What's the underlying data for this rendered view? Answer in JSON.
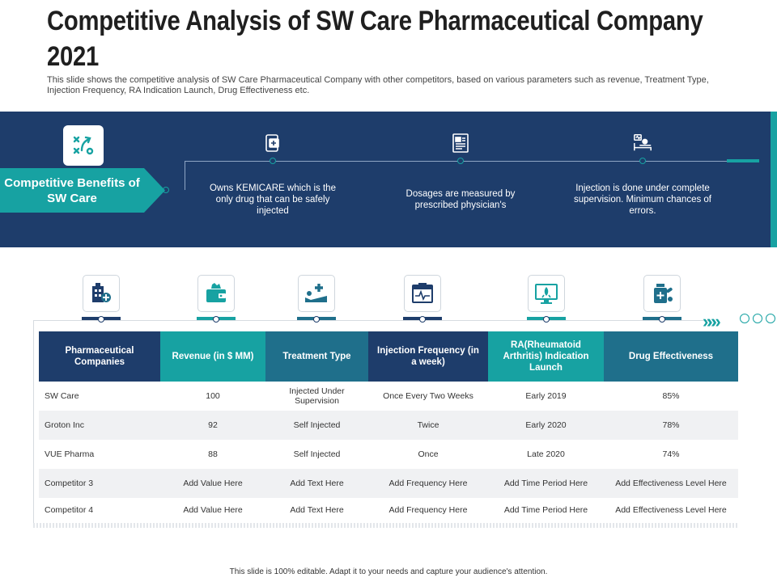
{
  "slide": {
    "title": "Competitive Analysis of SW Care Pharmaceutical Company 2021",
    "subtitle": "This slide shows the competitive analysis of SW Care Pharmaceutical Company with other competitors, based on various parameters such as revenue, Treatment Type, Injection Frequency, RA Indication Launch, Drug Effectiveness etc.",
    "footer": "This slide is 100% editable. Adapt it to your needs and capture your audience's attention."
  },
  "benefits": {
    "banner_label": "Competitive Benefits of SW Care",
    "items": [
      {
        "icon": "medicine-box-icon",
        "text": "Owns KEMICARE which is the only drug that can be safely injected"
      },
      {
        "icon": "prescription-document-icon",
        "text": "Dosages are measured by prescribed physician's"
      },
      {
        "icon": "patient-bed-monitor-icon",
        "text": "Injection is done under complete supervision. Minimum chances of errors."
      }
    ]
  },
  "colors": {
    "navy": "#1e3d6b",
    "teal": "#17a2a2",
    "steel": "#1f6f8b"
  },
  "table": {
    "icons": [
      "pharmacy-building-icon",
      "wallet-money-icon",
      "hospital-bed-icon",
      "injection-calendar-icon",
      "monitor-rocket-icon",
      "pill-bottle-icon"
    ],
    "headers": [
      "Pharmaceutical Companies",
      "Revenue (in $ MM)",
      "Treatment Type",
      "Injection Frequency (in a week)",
      "RA(Rheumatoid Arthritis) Indication Launch",
      "Drug Effectiveness"
    ],
    "rows": [
      [
        "SW Care",
        "100",
        "Injected Under Supervision",
        "Once Every Two Weeks",
        "Early 2019",
        "85%"
      ],
      [
        "Groton Inc",
        "92",
        "Self Injected",
        "Twice",
        "Early 2020",
        "78%"
      ],
      [
        "VUE Pharma",
        "88",
        "Self Injected",
        "Once",
        "Late 2020",
        "74%"
      ],
      [
        "Competitor 3",
        "Add Value Here",
        "Add Text Here",
        "Add Frequency Here",
        "Add Time Period Here",
        "Add Effectiveness Level Here"
      ],
      [
        "Competitor 4",
        "Add Value Here",
        "Add Text Here",
        "Add Frequency Here",
        "Add Time Period Here",
        "Add Effectiveness Level Here"
      ]
    ]
  }
}
